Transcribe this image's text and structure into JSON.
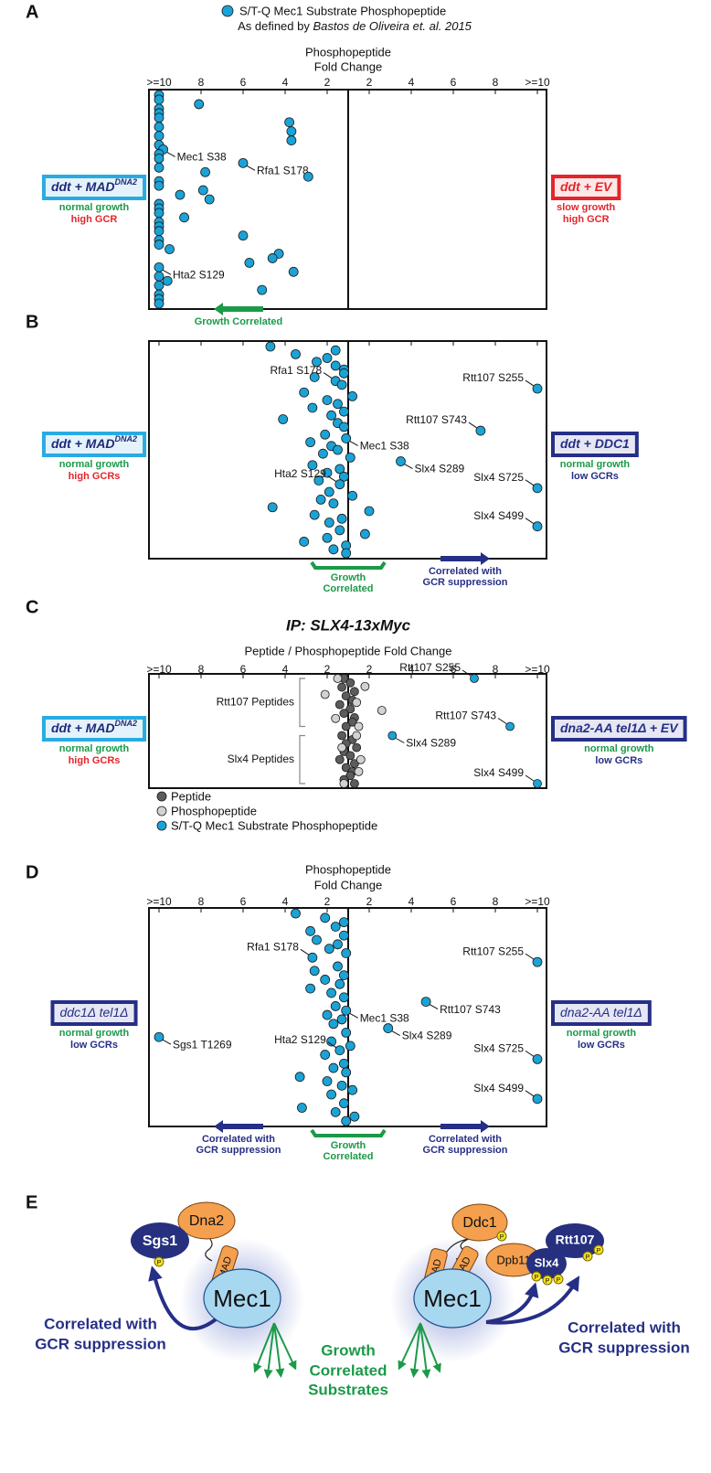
{
  "header": {
    "legend_text": "S/T-Q Mec1 Substrate Phosphopeptide",
    "legend_color": "#1ba3d6",
    "subtitle": "As defined by",
    "subtitle_italic": "Bastos de Oliveira et. al. 2015"
  },
  "chart_data": [
    {
      "type": "strip",
      "panel": "A",
      "xlabel": [
        "Phosphopeptide",
        "Fold Change"
      ],
      "x_scale": "signed-fold",
      "xlim": [
        -10,
        10
      ],
      "xticks": [
        {
          "value": -10,
          "label": ">=10"
        },
        {
          "value": -8,
          "label": "8"
        },
        {
          "value": -6,
          "label": "6"
        },
        {
          "value": -4,
          "label": "4"
        },
        {
          "value": -2,
          "label": "2"
        },
        2,
        4,
        6,
        8,
        {
          "value": 10,
          "label": ">=10"
        }
      ],
      "tick_labels": true,
      "center_line": true,
      "series": [
        {
          "color": "#1ba3d6",
          "values": [
            -10,
            -10,
            -8.1,
            -10,
            -10,
            -10,
            -3.8,
            -10,
            -3.7,
            -10,
            -3.7,
            -10,
            -9.8,
            -10,
            -10,
            -6,
            -10,
            -7.8,
            -2.9,
            -10,
            -10,
            -7.9,
            -9,
            -7.6,
            -10,
            -10,
            -10,
            -8.8,
            -10,
            -10,
            -10,
            -6,
            -10,
            -10,
            -9.5,
            -4.3,
            -4.6,
            -5.7,
            -10,
            -3.6,
            -10,
            -9.6,
            -10,
            -5.1,
            -10,
            -10,
            -10
          ],
          "labels": [
            null,
            null,
            null,
            null,
            null,
            null,
            null,
            null,
            null,
            null,
            null,
            null,
            "Mec1 S38",
            null,
            null,
            "Rfa1 S178",
            null,
            null,
            null,
            null,
            null,
            null,
            null,
            null,
            null,
            null,
            null,
            null,
            null,
            null,
            null,
            null,
            null,
            null,
            null,
            null,
            null,
            null,
            "Hta2 S129",
            null,
            null,
            null,
            null,
            null,
            null,
            null,
            null
          ]
        }
      ],
      "left_box": {
        "title": "ddt + MAD",
        "title_sup": "DNA2",
        "bold": true,
        "fill": "#e4f3fb",
        "border": "#29abe2",
        "text_color": "#1f2a7a",
        "lines": [
          {
            "text": "normal growth",
            "color": "#1b9a48"
          },
          {
            "text": "high GCR",
            "color": "#e5252a"
          }
        ]
      },
      "right_box": {
        "title": "ddt + EV",
        "bold": true,
        "fill": "#fde8e8",
        "border": "#e5252a",
        "text_color": "#e5252a",
        "lines": [
          {
            "text": "slow growth",
            "color": "#e5252a"
          },
          {
            "text": "high GCR",
            "color": "#e5252a"
          }
        ]
      },
      "notes": [
        {
          "kind": "arrow-left",
          "text": [
            "Growth Correlated"
          ],
          "color": "#1b9a48"
        }
      ]
    },
    {
      "type": "strip",
      "panel": "B",
      "x_scale": "signed-fold",
      "xlim": [
        -10,
        10
      ],
      "xticks": [
        -10,
        -8,
        -6,
        -4,
        -2,
        2,
        4,
        6,
        8,
        10
      ],
      "tick_labels": false,
      "center_line": true,
      "series": [
        {
          "color": "#1ba3d6",
          "values": [
            -4.7,
            -1.6,
            -3.5,
            -2,
            -2.5,
            -1.6,
            -1.2,
            -1.2,
            -2.6,
            -1.6,
            -1.3,
            10,
            -3.1,
            1.2,
            -2,
            -1.5,
            -2.7,
            -1.2,
            -1.8,
            -4.1,
            -1.5,
            -1.2,
            7.3,
            -2.1,
            -1.1,
            -2.8,
            -1.8,
            -1.5,
            -2.2,
            1.1,
            3.5,
            -2.7,
            -1.4,
            -2,
            -1.2,
            -2.4,
            -1.4,
            10,
            -1.9,
            1.2,
            -2.3,
            -1.7,
            -4.6,
            2,
            -2.6,
            -1.3,
            -1.9,
            10,
            -1.4,
            1.8,
            -2,
            -3.1,
            -1.1,
            -1.7,
            -1.1
          ],
          "labels": [
            null,
            null,
            null,
            null,
            null,
            null,
            null,
            null,
            null,
            "Rfa1 S178",
            null,
            "Rtt107 S255",
            null,
            null,
            null,
            null,
            null,
            null,
            null,
            null,
            null,
            null,
            "Rtt107 S743",
            null,
            "Mec1 S38",
            null,
            null,
            null,
            null,
            null,
            "Slx4 S289",
            null,
            null,
            null,
            null,
            null,
            "Hta2 S129",
            "Slx4 S725",
            null,
            null,
            null,
            null,
            null,
            null,
            null,
            null,
            null,
            "Slx4 S499",
            null,
            null,
            null,
            null,
            null,
            null,
            null
          ]
        }
      ],
      "left_box": {
        "title": "ddt + MAD",
        "title_sup": "DNA2",
        "bold": true,
        "fill": "#e4f3fb",
        "border": "#29abe2",
        "text_color": "#1f2a7a",
        "lines": [
          {
            "text": "normal growth",
            "color": "#1b9a48"
          },
          {
            "text": "high GCRs",
            "color": "#e5252a"
          }
        ]
      },
      "right_box": {
        "title": "ddt + DDC1",
        "bold": true,
        "fill": "#e6e7f3",
        "border": "#262f86",
        "text_color": "#262f86",
        "lines": [
          {
            "text": "normal growth",
            "color": "#1b9a48"
          },
          {
            "text": "low GCRs",
            "color": "#262f86"
          }
        ]
      },
      "notes": [
        {
          "kind": "bracket",
          "text": [
            "Growth",
            "Correlated"
          ],
          "color": "#1b9a48"
        },
        {
          "kind": "arrow-right",
          "text": [
            "Correlated with",
            "GCR suppression"
          ],
          "color": "#262f86"
        }
      ]
    },
    {
      "type": "strip-groups",
      "panel": "C",
      "title": "IP: SLX4-13xMyc",
      "xlabel": [
        "Peptide / Phosphopeptide Fold Change"
      ],
      "x_scale": "signed-fold",
      "xlim": [
        -10,
        10
      ],
      "xticks": [
        {
          "value": -10,
          "label": ">=10"
        },
        {
          "value": -8,
          "label": "8"
        },
        {
          "value": -6,
          "label": "6"
        },
        {
          "value": -4,
          "label": "4"
        },
        {
          "value": -2,
          "label": "2"
        },
        2,
        4,
        6,
        8,
        {
          "value": 10,
          "label": ">=10"
        }
      ],
      "tick_labels": true,
      "center_line": true,
      "series": [
        {
          "name": "Peptide",
          "color": "#5c5c5c"
        },
        {
          "name": "Phosphopeptide",
          "color": "#d2d2d2"
        },
        {
          "name": "S/T-Q Mec1 Substrate Phosphopeptide",
          "color": "#1ba3d6"
        }
      ],
      "groups": [
        {
          "name": "Rtt107 Peptides",
          "series": [
            {
              "values": [
                -1.2,
                1.1,
                -1.3,
                1.3,
                -1.1,
                1.2,
                -1.4,
                1.1,
                -1.2,
                1.3,
                1.2,
                -1.1
              ]
            },
            {
              "values": [
                -1.5,
                1.8,
                -2.1,
                1.4,
                2.6,
                -1.6,
                1.5
              ]
            },
            {
              "values": [
                7,
                8.7
              ],
              "labels": [
                "Rtt107 S255",
                "Rtt107 S743"
              ]
            }
          ]
        },
        {
          "name": "Slx4 Peptides",
          "series": [
            {
              "values": [
                -1.3,
                1.2,
                -1.1,
                1.4,
                -1.2,
                1.1,
                -1.4,
                1.3,
                -1.1,
                1.2,
                1.1,
                -1.2,
                1.3
              ]
            },
            {
              "values": [
                1.4,
                -1.3,
                1.6,
                1.5,
                -1.2
              ]
            },
            {
              "values": [
                3.1,
                10
              ],
              "labels": [
                "Slx4 S289",
                "Slx4 S499"
              ]
            }
          ]
        }
      ],
      "left_box": {
        "title": "ddt + MAD",
        "title_sup": "DNA2",
        "bold": true,
        "fill": "#e4f3fb",
        "border": "#29abe2",
        "text_color": "#1f2a7a",
        "lines": [
          {
            "text": "normal growth",
            "color": "#1b9a48"
          },
          {
            "text": "high GCRs",
            "color": "#e5252a"
          }
        ]
      },
      "right_box": {
        "title": "dna2-AA tel1Δ + EV",
        "bold": true,
        "fill": "#e6e7f3",
        "border": "#262f86",
        "text_color": "#262f86",
        "lines": [
          {
            "text": "normal growth",
            "color": "#1b9a48"
          },
          {
            "text": "low GCRs",
            "color": "#262f86"
          }
        ]
      },
      "notes": []
    },
    {
      "type": "strip",
      "panel": "D",
      "xlabel": [
        "Phosphopeptide",
        "Fold Change"
      ],
      "x_scale": "signed-fold",
      "xlim": [
        -10,
        10
      ],
      "xticks": [
        {
          "value": -10,
          "label": ">=10"
        },
        {
          "value": -8,
          "label": "8"
        },
        {
          "value": -6,
          "label": "6"
        },
        {
          "value": -4,
          "label": "4"
        },
        {
          "value": -2,
          "label": "2"
        },
        2,
        4,
        6,
        8,
        {
          "value": 10,
          "label": ">=10"
        }
      ],
      "tick_labels": true,
      "center_line": true,
      "series": [
        {
          "color": "#1ba3d6",
          "values": [
            -3.5,
            -2.1,
            -1.2,
            -1.6,
            -2.8,
            -1.2,
            -2.5,
            -1.5,
            -1.9,
            -1.1,
            -2.7,
            10,
            -1.5,
            -2.6,
            -1.2,
            -2.1,
            -1.4,
            -2.8,
            -1.8,
            -1.2,
            4.7,
            -1.6,
            -1.1,
            -2,
            -1.3,
            -1.7,
            2.9,
            -1.1,
            -10,
            -1.8,
            1.1,
            -1.4,
            -2.1,
            10,
            -1.2,
            -1.7,
            -1.1,
            -3.3,
            -2,
            -1.3,
            1.2,
            -1.8,
            10,
            -1.2,
            -3.2,
            -1.6,
            1.3,
            -1.1
          ],
          "labels": [
            null,
            null,
            null,
            null,
            null,
            null,
            null,
            null,
            null,
            null,
            "Rfa1 S178",
            "Rtt107 S255",
            null,
            null,
            null,
            null,
            null,
            null,
            null,
            null,
            "Rtt107 S743",
            null,
            "Mec1 S38",
            null,
            null,
            null,
            "Slx4 S289",
            null,
            "Sgs1 T1269",
            null,
            null,
            "Hta2 S129",
            null,
            "Slx4 S725",
            null,
            null,
            null,
            null,
            null,
            null,
            null,
            null,
            "Slx4 S499",
            null,
            null,
            null,
            null,
            null
          ]
        }
      ],
      "left_box": {
        "title": "ddc1Δ tel1Δ",
        "bold": false,
        "fill": "#e6e7f3",
        "border": "#262f86",
        "text_color": "#262f86",
        "lines": [
          {
            "text": "normal growth",
            "color": "#1b9a48"
          },
          {
            "text": "low GCRs",
            "color": "#262f86"
          }
        ]
      },
      "right_box": {
        "title": "dna2-AA tel1Δ",
        "bold": false,
        "fill": "#e6e7f3",
        "border": "#262f86",
        "text_color": "#262f86",
        "lines": [
          {
            "text": "normal growth",
            "color": "#1b9a48"
          },
          {
            "text": "low GCRs",
            "color": "#262f86"
          }
        ]
      },
      "notes": [
        {
          "kind": "arrow-left",
          "text": [
            "Correlated with",
            "GCR suppression"
          ],
          "color": "#262f86"
        },
        {
          "kind": "bracket",
          "text": [
            "Growth",
            "Correlated"
          ],
          "color": "#1b9a48"
        },
        {
          "kind": "arrow-right",
          "text": [
            "Correlated with",
            "GCR suppression"
          ],
          "color": "#262f86"
        }
      ]
    }
  ],
  "diagram": {
    "panel": "E",
    "mec1": "Mec1",
    "dna2": "Dna2",
    "mad": "MAD",
    "sgs1": "Sgs1",
    "ddc1": "Ddc1",
    "dpb11": "Dpb11",
    "rtt107": "Rtt107",
    "slx4": "Slx4",
    "phospho": "P",
    "gcr_note": [
      "Correlated with",
      "GCR suppression"
    ],
    "growth_note": [
      "Growth",
      "Correlated",
      "Substrates"
    ]
  }
}
